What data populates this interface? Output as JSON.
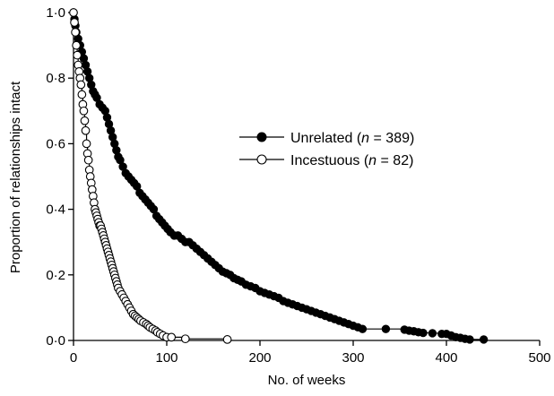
{
  "chart_data": {
    "type": "line",
    "subtype": "kaplan-meier step survival",
    "title": "",
    "xlabel": "No. of weeks",
    "ylabel": "Proportion of relationships intact",
    "xlim": [
      0,
      500
    ],
    "ylim": [
      0,
      1.0
    ],
    "xticks": [
      "0",
      "100",
      "200",
      "300",
      "400",
      "500"
    ],
    "yticks": [
      "0·0",
      "0·2",
      "0·4",
      "0·6",
      "0·8",
      "1·0"
    ],
    "grid": false,
    "legend_position": "center-right",
    "series": [
      {
        "name": "Unrelated",
        "legend_prefix": "Unrelated (",
        "n_symbol": "n",
        "legend_suffix": " = 389)",
        "marker": "filled-circle",
        "color": "#000000",
        "x": [
          0,
          1,
          2,
          3,
          5,
          7,
          9,
          11,
          13,
          15,
          17,
          19,
          21,
          23,
          25,
          28,
          31,
          34,
          36,
          38,
          40,
          42,
          44,
          46,
          48,
          50,
          53,
          56,
          59,
          62,
          65,
          68,
          71,
          74,
          77,
          80,
          83,
          86,
          89,
          92,
          95,
          98,
          101,
          104,
          108,
          112,
          116,
          120,
          124,
          128,
          132,
          136,
          140,
          144,
          148,
          152,
          156,
          160,
          164,
          168,
          172,
          176,
          180,
          185,
          190,
          195,
          200,
          205,
          210,
          215,
          220,
          225,
          230,
          235,
          240,
          245,
          250,
          255,
          260,
          265,
          270,
          275,
          280,
          285,
          290,
          295,
          300,
          305,
          310,
          335,
          355,
          360,
          365,
          370,
          375,
          385,
          395,
          400,
          405,
          410,
          415,
          420,
          425,
          440
        ],
        "y": [
          1.0,
          0.98,
          0.96,
          0.94,
          0.92,
          0.9,
          0.88,
          0.86,
          0.84,
          0.82,
          0.8,
          0.78,
          0.76,
          0.75,
          0.74,
          0.72,
          0.71,
          0.7,
          0.68,
          0.66,
          0.64,
          0.62,
          0.6,
          0.58,
          0.56,
          0.55,
          0.53,
          0.51,
          0.5,
          0.49,
          0.48,
          0.47,
          0.45,
          0.44,
          0.43,
          0.42,
          0.41,
          0.4,
          0.38,
          0.37,
          0.36,
          0.35,
          0.34,
          0.33,
          0.32,
          0.32,
          0.31,
          0.3,
          0.3,
          0.29,
          0.28,
          0.27,
          0.26,
          0.25,
          0.24,
          0.23,
          0.22,
          0.21,
          0.205,
          0.2,
          0.19,
          0.185,
          0.18,
          0.17,
          0.165,
          0.16,
          0.15,
          0.145,
          0.14,
          0.135,
          0.13,
          0.12,
          0.115,
          0.11,
          0.105,
          0.1,
          0.095,
          0.09,
          0.085,
          0.08,
          0.075,
          0.07,
          0.065,
          0.06,
          0.055,
          0.05,
          0.045,
          0.04,
          0.035,
          0.035,
          0.033,
          0.03,
          0.028,
          0.025,
          0.023,
          0.022,
          0.02,
          0.02,
          0.015,
          0.01,
          0.008,
          0.005,
          0.003,
          0.003
        ]
      },
      {
        "name": "Incestuous",
        "legend_prefix": "Incestuous (",
        "n_symbol": "n",
        "legend_suffix": " = 82)",
        "marker": "open-circle",
        "color": "#000000",
        "x": [
          0,
          1,
          2,
          3,
          4,
          5,
          6,
          7,
          8,
          9,
          10,
          11,
          12,
          13,
          14,
          15,
          16,
          17,
          18,
          19,
          20,
          21,
          22,
          23,
          24,
          25,
          26,
          27,
          28,
          29,
          30,
          31,
          32,
          33,
          34,
          35,
          36,
          37,
          38,
          39,
          40,
          41,
          42,
          43,
          44,
          45,
          46,
          47,
          48,
          50,
          52,
          54,
          56,
          58,
          60,
          62,
          64,
          66,
          68,
          70,
          72,
          75,
          78,
          80,
          82,
          85,
          88,
          90,
          93,
          96,
          100,
          105,
          120,
          165
        ],
        "y": [
          1.0,
          0.97,
          0.94,
          0.9,
          0.87,
          0.84,
          0.82,
          0.8,
          0.78,
          0.75,
          0.72,
          0.7,
          0.67,
          0.64,
          0.6,
          0.57,
          0.55,
          0.52,
          0.5,
          0.48,
          0.46,
          0.44,
          0.42,
          0.4,
          0.39,
          0.38,
          0.37,
          0.36,
          0.35,
          0.35,
          0.34,
          0.33,
          0.32,
          0.31,
          0.3,
          0.29,
          0.28,
          0.27,
          0.26,
          0.25,
          0.24,
          0.23,
          0.22,
          0.21,
          0.2,
          0.19,
          0.18,
          0.17,
          0.16,
          0.15,
          0.14,
          0.13,
          0.12,
          0.11,
          0.1,
          0.09,
          0.08,
          0.075,
          0.07,
          0.065,
          0.06,
          0.055,
          0.05,
          0.045,
          0.04,
          0.035,
          0.03,
          0.025,
          0.02,
          0.015,
          0.01,
          0.01,
          0.005,
          0.003
        ]
      }
    ]
  }
}
